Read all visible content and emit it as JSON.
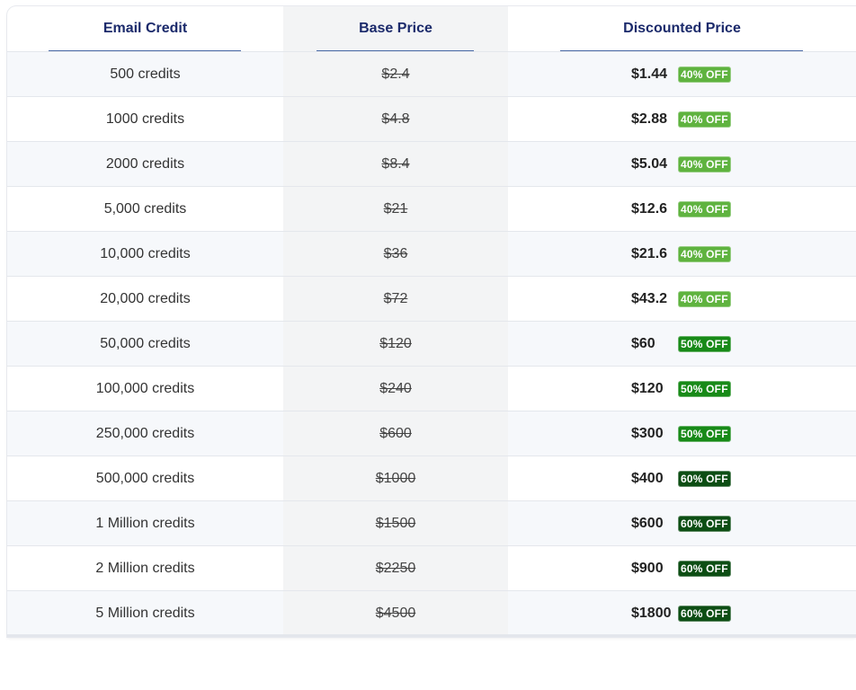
{
  "table": {
    "headers": {
      "credit": "Email Credit",
      "base": "Base Price",
      "discounted": "Discounted Price"
    },
    "badge_colors": {
      "40% OFF": "#5fb33f",
      "50% OFF": "#188a18",
      "60% OFF": "#0d4e14"
    },
    "rows": [
      {
        "credit": "500 credits",
        "base": "$2.4",
        "price": "$1.44",
        "badge": "40% OFF"
      },
      {
        "credit": "1000 credits",
        "base": "$4.8",
        "price": "$2.88",
        "badge": "40% OFF"
      },
      {
        "credit": "2000 credits",
        "base": "$8.4",
        "price": "$5.04",
        "badge": "40% OFF"
      },
      {
        "credit": "5,000 credits",
        "base": "$21",
        "price": "$12.6",
        "badge": "40% OFF"
      },
      {
        "credit": "10,000 credits",
        "base": "$36",
        "price": "$21.6",
        "badge": "40% OFF"
      },
      {
        "credit": "20,000 credits",
        "base": "$72",
        "price": "$43.2",
        "badge": "40% OFF"
      },
      {
        "credit": "50,000 credits",
        "base": "$120",
        "price": "$60",
        "badge": "50% OFF"
      },
      {
        "credit": "100,000 credits",
        "base": "$240",
        "price": "$120",
        "badge": "50% OFF"
      },
      {
        "credit": "250,000 credits",
        "base": "$600",
        "price": "$300",
        "badge": "50% OFF"
      },
      {
        "credit": "500,000 credits",
        "base": "$1000",
        "price": "$400",
        "badge": "60% OFF"
      },
      {
        "credit": "1 Million credits",
        "base": "$1500",
        "price": "$600",
        "badge": "60% OFF"
      },
      {
        "credit": "2 Million credits",
        "base": "$2250",
        "price": "$900",
        "badge": "60% OFF"
      },
      {
        "credit": "5 Million credits",
        "base": "$4500",
        "price": "$1800",
        "badge": "60% OFF"
      }
    ]
  }
}
